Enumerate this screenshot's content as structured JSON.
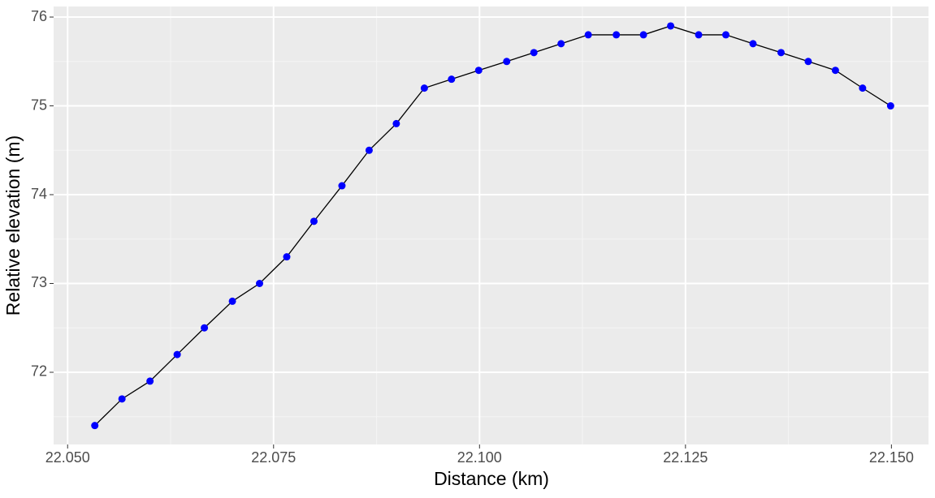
{
  "chart_data": {
    "type": "line",
    "x_label": "Distance (km)",
    "y_label": "Relative elevation (m)",
    "x": [
      22.0533,
      22.0566,
      22.06,
      22.0633,
      22.0666,
      22.07,
      22.0733,
      22.0766,
      22.0799,
      22.0833,
      22.0866,
      22.0899,
      22.0933,
      22.0966,
      22.0999,
      22.1033,
      22.1066,
      22.1099,
      22.1132,
      22.1166,
      22.1199,
      22.1232,
      22.1266,
      22.1299,
      22.1332,
      22.1366,
      22.1399,
      22.1432,
      22.1465,
      22.1499
    ],
    "series": [
      {
        "line_color": "#000000",
        "color": "#0000ff",
        "values": [
          71.4,
          71.7,
          71.9,
          72.2,
          72.5,
          72.8,
          73.0,
          73.3,
          73.7,
          74.1,
          74.5,
          74.8,
          75.2,
          75.3,
          75.4,
          75.5,
          75.6,
          75.7,
          75.8,
          75.8,
          75.8,
          75.9,
          75.8,
          75.8,
          75.7,
          75.6,
          75.5,
          75.4,
          75.2,
          75.0
        ]
      }
    ],
    "xlim": [
      22.0483,
      22.1545
    ],
    "ylim": [
      71.187,
      76.119
    ],
    "xticks": [
      {
        "value": 22.05,
        "label": "22.050"
      },
      {
        "value": 22.075,
        "label": "22.075"
      },
      {
        "value": 22.1,
        "label": "22.100"
      },
      {
        "value": 22.125,
        "label": "22.125"
      },
      {
        "value": 22.15,
        "label": "22.150"
      }
    ],
    "yticks": [
      72,
      73,
      74,
      75,
      76
    ],
    "grid": true
  }
}
